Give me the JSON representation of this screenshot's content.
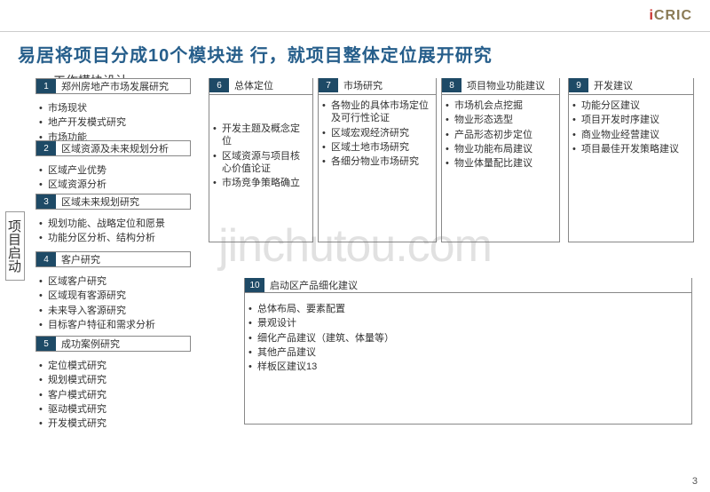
{
  "logo": {
    "dot": "i",
    "rest": "CRIC"
  },
  "title": "易居将项目分成10个模块进 行，就项目整体定位展开研究",
  "subtitle": "工作模块设计",
  "vlabel": "项目启动",
  "pagenum": "3",
  "watermark": "jinchutou.com",
  "modules": {
    "m1": {
      "num": "1",
      "title": "郑州房地产市场发展研究",
      "items": [
        "市场现状",
        "地产开发模式研究",
        "市场功能"
      ]
    },
    "m2": {
      "num": "2",
      "title": "区域资源及未来规划分析",
      "items": [
        "区域产业优势",
        "区域资源分析"
      ]
    },
    "m3": {
      "num": "3",
      "title": "区域未来规划研究",
      "items": [
        "规划功能、战略定位和愿景",
        "功能分区分析、结构分析"
      ]
    },
    "m4": {
      "num": "4",
      "title": "客户研究",
      "items": [
        "区域客户研究",
        "区域现有客源研究",
        "未来导入客源研究",
        "目标客户特征和需求分析"
      ]
    },
    "m5": {
      "num": "5",
      "title": "成功案例研究",
      "items": [
        "定位模式研究",
        "规划模式研究",
        "客户模式研究",
        "驱动模式研究",
        "开发模式研究"
      ]
    },
    "m6": {
      "num": "6",
      "title": "总体定位",
      "items": [
        "开发主题及概念定位",
        "区域资源与项目核心价值论证",
        "市场竞争策略确立"
      ]
    },
    "m7": {
      "num": "7",
      "title": "市场研究",
      "items": [
        "各物业的具体市场定位及可行性论证",
        "区域宏观经济研究",
        "区域土地市场研究",
        "各细分物业市场研究"
      ]
    },
    "m8": {
      "num": "8",
      "title": "项目物业功能建议",
      "items": [
        "市场机会点挖掘",
        "物业形态选型",
        "产品形态初步定位",
        "物业功能布局建议",
        "物业体量配比建议"
      ]
    },
    "m9": {
      "num": "9",
      "title": "开发建议",
      "items": [
        "功能分区建议",
        "项目开发时序建议",
        "商业物业经营建议",
        "项目最佳开发策略建议"
      ]
    },
    "m10": {
      "num": "10",
      "title": "启动区产品细化建议",
      "items": [
        "总体布局、要素配置",
        "景观设计",
        "细化产品建议（建筑、体量等）",
        "其他产品建议",
        "样板区建议13"
      ]
    }
  }
}
